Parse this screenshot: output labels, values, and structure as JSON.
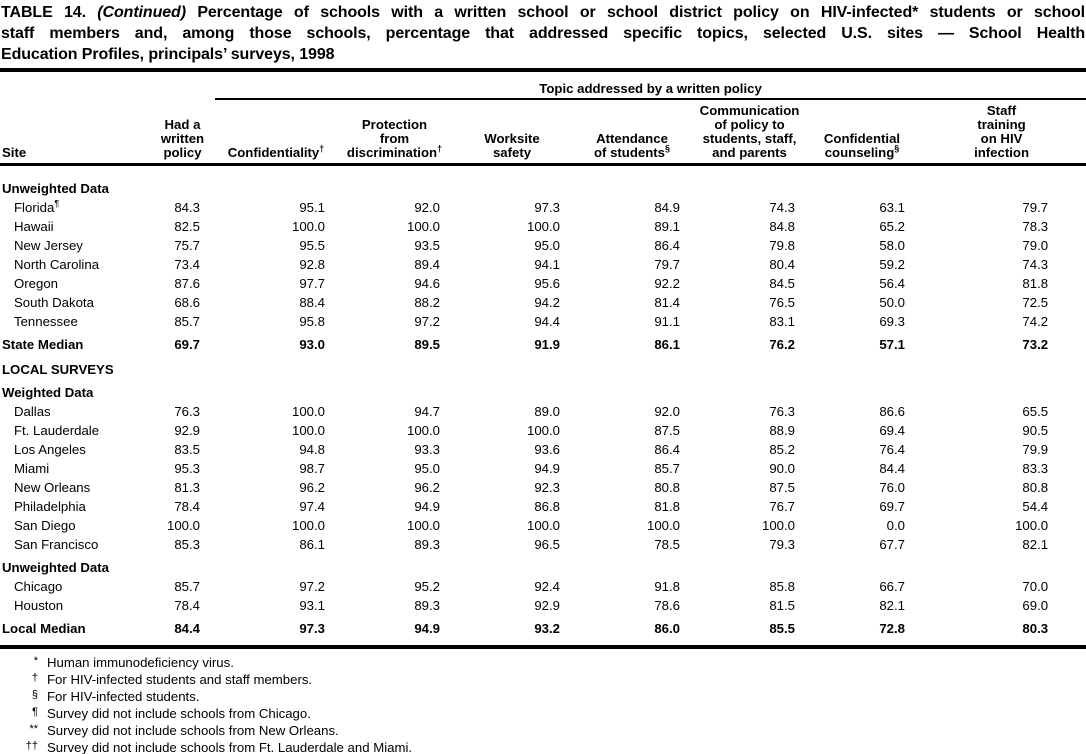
{
  "title": {
    "line1_prefix": "TABLE 14.",
    "line1_continued": "(Continued)",
    "line1_rest": "Percentage of schools with a written school or school district policy on HIV-infected* students or school",
    "line2": "staff members and, among those schools, percentage that addressed specific topics, selected U.S. sites — School Health",
    "line3": "Education Profiles, principals’ surveys, 1998"
  },
  "table": {
    "spanner": "Topic addressed by a written policy",
    "site_header": "Site",
    "columns": [
      {
        "lines": [
          "Had a",
          "written",
          "policy"
        ],
        "sup": ""
      },
      {
        "lines": [
          "Confidentiality"
        ],
        "sup": "†"
      },
      {
        "lines": [
          "Protection",
          "from",
          "discrimination"
        ],
        "sup": "†"
      },
      {
        "lines": [
          "Worksite",
          "safety"
        ],
        "sup": ""
      },
      {
        "lines": [
          "Attendance",
          "of students"
        ],
        "sup": "§"
      },
      {
        "lines": [
          "Communication",
          "of policy to",
          "students, staff,",
          "and parents"
        ],
        "sup": ""
      },
      {
        "lines": [
          "Confidential",
          "counseling"
        ],
        "sup": "§"
      },
      {
        "lines": [
          "Staff",
          "training",
          "on HIV",
          "infection"
        ],
        "sup": ""
      }
    ],
    "rows": [
      {
        "type": "section",
        "site": "Unweighted Data"
      },
      {
        "type": "data",
        "site": "Florida",
        "site_sup": "¶",
        "values": [
          "84.3",
          "95.1",
          "92.0",
          "97.3",
          "84.9",
          "74.3",
          "63.1",
          "79.7"
        ]
      },
      {
        "type": "data",
        "site": "Hawaii",
        "values": [
          "82.5",
          "100.0",
          "100.0",
          "100.0",
          "89.1",
          "84.8",
          "65.2",
          "78.3"
        ]
      },
      {
        "type": "data",
        "site": "New Jersey",
        "values": [
          "75.7",
          "95.5",
          "93.5",
          "95.0",
          "86.4",
          "79.8",
          "58.0",
          "79.0"
        ]
      },
      {
        "type": "data",
        "site": "North Carolina",
        "values": [
          "73.4",
          "92.8",
          "89.4",
          "94.1",
          "79.7",
          "80.4",
          "59.2",
          "74.3"
        ]
      },
      {
        "type": "data",
        "site": "Oregon",
        "values": [
          "87.6",
          "97.7",
          "94.6",
          "95.6",
          "92.2",
          "84.5",
          "56.4",
          "81.8"
        ]
      },
      {
        "type": "data",
        "site": "South Dakota",
        "values": [
          "68.6",
          "88.4",
          "88.2",
          "94.2",
          "81.4",
          "76.5",
          "50.0",
          "72.5"
        ]
      },
      {
        "type": "data",
        "site": "Tennessee",
        "values": [
          "85.7",
          "95.8",
          "97.2",
          "94.4",
          "91.1",
          "83.1",
          "69.3",
          "74.2"
        ]
      },
      {
        "type": "median",
        "site": "State Median",
        "values": [
          "69.7",
          "93.0",
          "89.5",
          "91.9",
          "86.1",
          "76.2",
          "57.1",
          "73.2"
        ]
      },
      {
        "type": "section",
        "site": "LOCAL SURVEYS"
      },
      {
        "type": "section",
        "site": "Weighted Data"
      },
      {
        "type": "data",
        "site": "Dallas",
        "values": [
          "76.3",
          "100.0",
          "94.7",
          "89.0",
          "92.0",
          "76.3",
          "86.6",
          "65.5"
        ]
      },
      {
        "type": "data",
        "site": "Ft. Lauderdale",
        "values": [
          "92.9",
          "100.0",
          "100.0",
          "100.0",
          "87.5",
          "88.9",
          "69.4",
          "90.5"
        ]
      },
      {
        "type": "data",
        "site": "Los Angeles",
        "values": [
          "83.5",
          "94.8",
          "93.3",
          "93.6",
          "86.4",
          "85.2",
          "76.4",
          "79.9"
        ]
      },
      {
        "type": "data",
        "site": "Miami",
        "values": [
          "95.3",
          "98.7",
          "95.0",
          "94.9",
          "85.7",
          "90.0",
          "84.4",
          "83.3"
        ]
      },
      {
        "type": "data",
        "site": "New Orleans",
        "values": [
          "81.3",
          "96.2",
          "96.2",
          "92.3",
          "80.8",
          "87.5",
          "76.0",
          "80.8"
        ]
      },
      {
        "type": "data",
        "site": "Philadelphia",
        "values": [
          "78.4",
          "97.4",
          "94.9",
          "86.8",
          "81.8",
          "76.7",
          "69.7",
          "54.4"
        ]
      },
      {
        "type": "data",
        "site": "San Diego",
        "values": [
          "100.0",
          "100.0",
          "100.0",
          "100.0",
          "100.0",
          "100.0",
          "0.0",
          "100.0"
        ]
      },
      {
        "type": "data",
        "site": "San Francisco",
        "values": [
          "85.3",
          "86.1",
          "89.3",
          "96.5",
          "78.5",
          "79.3",
          "67.7",
          "82.1"
        ]
      },
      {
        "type": "section",
        "site": "Unweighted Data"
      },
      {
        "type": "data",
        "site": "Chicago",
        "values": [
          "85.7",
          "97.2",
          "95.2",
          "92.4",
          "91.8",
          "85.8",
          "66.7",
          "70.0"
        ]
      },
      {
        "type": "data",
        "site": "Houston",
        "values": [
          "78.4",
          "93.1",
          "89.3",
          "92.9",
          "78.6",
          "81.5",
          "82.1",
          "69.0"
        ]
      },
      {
        "type": "median",
        "site": "Local Median",
        "values": [
          "84.4",
          "97.3",
          "94.9",
          "93.2",
          "86.0",
          "85.5",
          "72.8",
          "80.3"
        ]
      }
    ]
  },
  "footnotes": [
    {
      "marker": "*",
      "text": "Human immunodeficiency virus."
    },
    {
      "marker": "†",
      "text": "For HIV-infected students and staff members."
    },
    {
      "marker": "§",
      "text": "For HIV-infected students."
    },
    {
      "marker": "¶",
      "text": "Survey did not include schools from Chicago."
    },
    {
      "marker": "**",
      "text": "Survey did not include schools from New Orleans."
    },
    {
      "marker": "††",
      "text": "Survey did not include schools from Ft. Lauderdale and Miami."
    }
  ]
}
